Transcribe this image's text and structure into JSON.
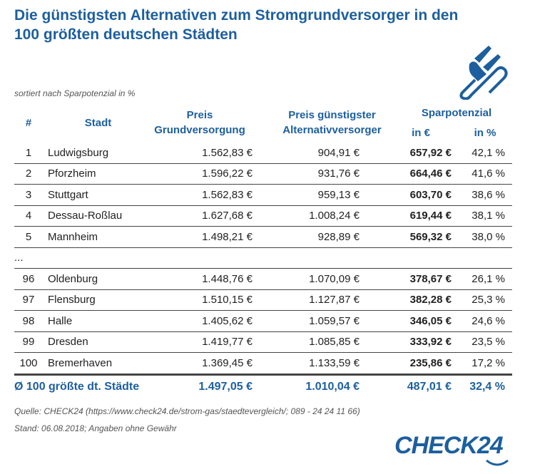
{
  "title": "Die günstigsten Alternativen zum Stromgrundversorger in den 100 größten deutschen Städten",
  "subtitle": "sortiert nach Sparpotenzial in %",
  "headers": {
    "rank": "#",
    "city": "Stadt",
    "base_1": "Preis",
    "base_2": "Grundversorgung",
    "alt_1": "Preis günstigster",
    "alt_2": "Alternativversorger",
    "savings": "Sparpotenzial",
    "savings_eur": "in €",
    "savings_pct": "in %"
  },
  "rows": [
    {
      "rank": "1",
      "city": "Ludwigsburg",
      "base": "1.562,83 €",
      "alt": "904,91 €",
      "save_eur": "657,92 €",
      "save_pct": "42,1 %"
    },
    {
      "rank": "2",
      "city": "Pforzheim",
      "base": "1.596,22 €",
      "alt": "931,76 €",
      "save_eur": "664,46 €",
      "save_pct": "41,6 %"
    },
    {
      "rank": "3",
      "city": "Stuttgart",
      "base": "1.562,83 €",
      "alt": "959,13 €",
      "save_eur": "603,70 €",
      "save_pct": "38,6 %"
    },
    {
      "rank": "4",
      "city": "Dessau-Roßlau",
      "base": "1.627,68 €",
      "alt": "1.008,24 €",
      "save_eur": "619,44 €",
      "save_pct": "38,1 %"
    },
    {
      "rank": "5",
      "city": "Mannheim",
      "base": "1.498,21 €",
      "alt": "928,89 €",
      "save_eur": "569,32 €",
      "save_pct": "38,0 %"
    },
    {
      "rank": "...",
      "city": "",
      "base": "",
      "alt": "",
      "save_eur": "",
      "save_pct": ""
    },
    {
      "rank": "96",
      "city": "Oldenburg",
      "base": "1.448,76 €",
      "alt": "1.070,09 €",
      "save_eur": "378,67 €",
      "save_pct": "26,1 %"
    },
    {
      "rank": "97",
      "city": "Flensburg",
      "base": "1.510,15 €",
      "alt": "1.127,87 €",
      "save_eur": "382,28 €",
      "save_pct": "25,3 %"
    },
    {
      "rank": "98",
      "city": "Halle",
      "base": "1.405,62 €",
      "alt": "1.059,57 €",
      "save_eur": "346,05 €",
      "save_pct": "24,6 %"
    },
    {
      "rank": "99",
      "city": "Dresden",
      "base": "1.419,77 €",
      "alt": "1.085,85 €",
      "save_eur": "333,92 €",
      "save_pct": "23,5 %"
    },
    {
      "rank": "100",
      "city": "Bremerhaven",
      "base": "1.369,45 €",
      "alt": "1.133,59 €",
      "save_eur": "235,86 €",
      "save_pct": "17,2 %"
    }
  ],
  "average": {
    "label": "Ø 100 größte dt. Städte",
    "base": "1.497,05 €",
    "alt": "1.010,04 €",
    "save_eur": "487,01 €",
    "save_pct": "32,4 %"
  },
  "source": "Quelle: CHECK24 (https://www.check24.de/strom-gas/staedtevergleich/; 089 - 24 24 11 66)",
  "stand": "Stand: 06.08.2018; Angaben ohne Gewähr",
  "logo": "CHECK24",
  "colors": {
    "accent": "#1d5f9e"
  }
}
